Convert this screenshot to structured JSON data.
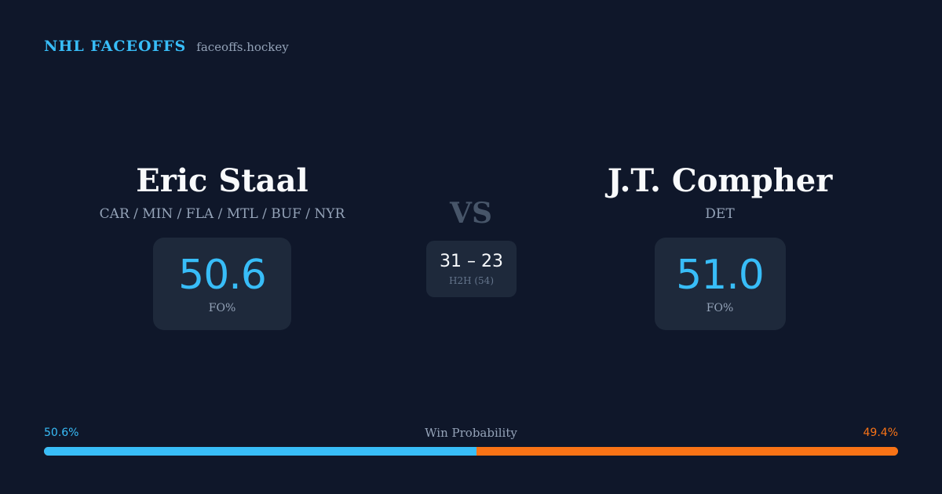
{
  "brand": {
    "name": "NHL FACEOFFS",
    "url": "faceoffs.hockey"
  },
  "player_left": {
    "name": "Eric Staal",
    "teams": "CAR / MIN / FLA / MTL / BUF / NYR",
    "fo_value": "50.6",
    "fo_label": "FO%"
  },
  "player_right": {
    "name": "J.T. Compher",
    "teams": "DET",
    "fo_value": "51.0",
    "fo_label": "FO%"
  },
  "vs_label": "VS",
  "h2h": {
    "score": "31 – 23",
    "label": "H2H (54)"
  },
  "win_probability": {
    "title": "Win Probability",
    "left_label": "50.6%",
    "right_label": "49.4%",
    "left_fraction": 0.506,
    "right_fraction": 0.494
  },
  "colors": {
    "background": "#0f172a",
    "card": "#1e293b",
    "accent_blue": "#38bdf8",
    "accent_orange": "#f97316",
    "muted_text": "#94a3b8"
  }
}
